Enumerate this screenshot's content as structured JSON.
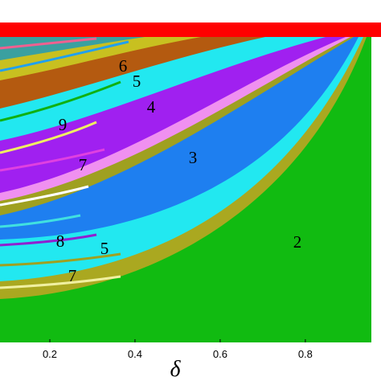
{
  "chart_data": {
    "type": "region-map",
    "xlim": [
      0.083,
      0.955
    ],
    "xticks": [
      0.2,
      0.4,
      0.6,
      0.8
    ],
    "xlabel": "δ",
    "region_labels": [
      6,
      5,
      4,
      9,
      3,
      7,
      2,
      8,
      5,
      7
    ]
  }
}
